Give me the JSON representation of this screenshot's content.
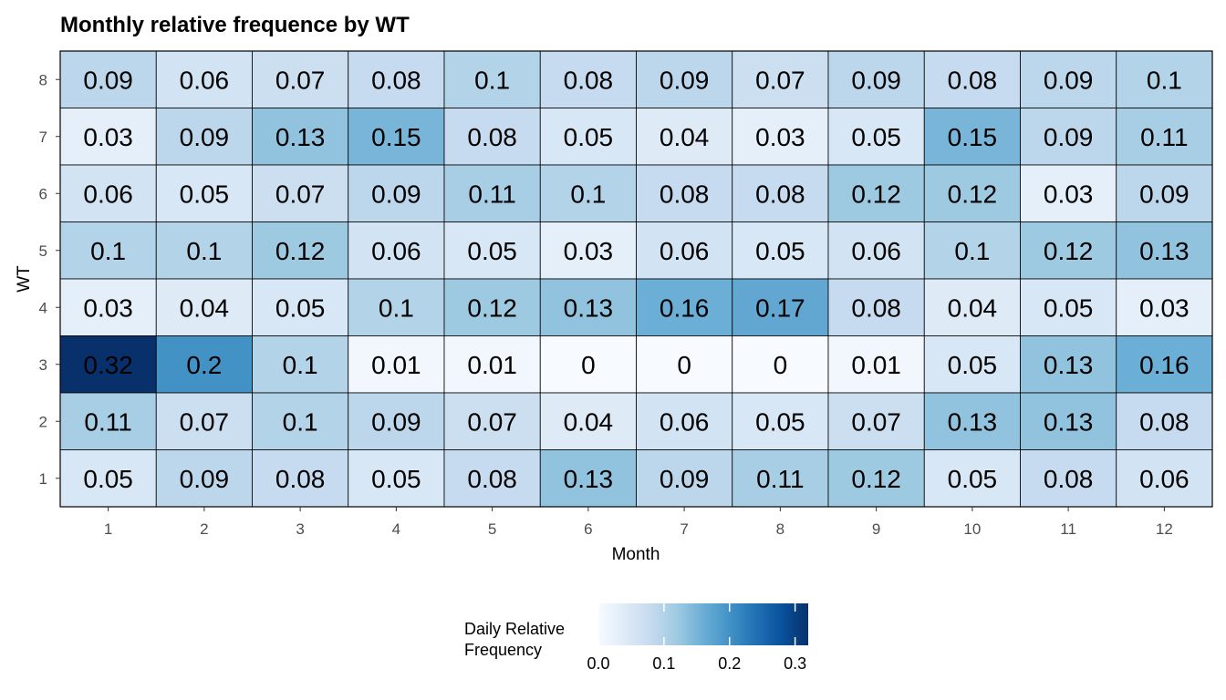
{
  "chart_data": {
    "type": "heatmap",
    "title": "Monthly relative frequence by WT",
    "xlabel": "Month",
    "ylabel": "WT",
    "x": [
      "1",
      "2",
      "3",
      "4",
      "5",
      "6",
      "7",
      "8",
      "9",
      "10",
      "11",
      "12"
    ],
    "y": [
      "8",
      "7",
      "6",
      "5",
      "4",
      "3",
      "2",
      "1"
    ],
    "values": [
      [
        0.09,
        0.06,
        0.07,
        0.08,
        0.1,
        0.08,
        0.09,
        0.07,
        0.09,
        0.08,
        0.09,
        0.1
      ],
      [
        0.03,
        0.09,
        0.13,
        0.15,
        0.08,
        0.05,
        0.04,
        0.03,
        0.05,
        0.15,
        0.09,
        0.11
      ],
      [
        0.06,
        0.05,
        0.07,
        0.09,
        0.11,
        0.1,
        0.08,
        0.08,
        0.12,
        0.12,
        0.03,
        0.09
      ],
      [
        0.1,
        0.1,
        0.12,
        0.06,
        0.05,
        0.03,
        0.06,
        0.05,
        0.06,
        0.1,
        0.12,
        0.13
      ],
      [
        0.03,
        0.04,
        0.05,
        0.1,
        0.12,
        0.13,
        0.16,
        0.17,
        0.08,
        0.04,
        0.05,
        0.03
      ],
      [
        0.32,
        0.2,
        0.1,
        0.01,
        0.01,
        0,
        0,
        0,
        0.01,
        0.05,
        0.13,
        0.16
      ],
      [
        0.11,
        0.07,
        0.1,
        0.09,
        0.07,
        0.04,
        0.06,
        0.05,
        0.07,
        0.13,
        0.13,
        0.08
      ],
      [
        0.05,
        0.09,
        0.08,
        0.05,
        0.08,
        0.13,
        0.09,
        0.11,
        0.12,
        0.05,
        0.08,
        0.06
      ]
    ],
    "colorbar": {
      "title_lines": [
        "Daily Relative",
        "Frequency"
      ],
      "range": [
        0,
        0.32
      ],
      "ticks": [
        0.0,
        0.1,
        0.2,
        0.3
      ],
      "tick_labels": [
        "0.0",
        "0.1",
        "0.2",
        "0.3"
      ],
      "colors": [
        "#f7fbff",
        "#deebf7",
        "#c6dbef",
        "#9ecae1",
        "#6baed6",
        "#4292c6",
        "#2171b5",
        "#08519c",
        "#08306b"
      ]
    },
    "legend_position": "bottom",
    "grid": false
  }
}
